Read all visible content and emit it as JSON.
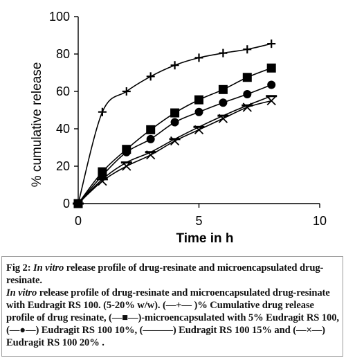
{
  "chart_data": {
    "type": "line",
    "xlabel": "Time in h",
    "ylabel": "% cumulative release",
    "xlim": [
      0,
      10
    ],
    "ylim": [
      0,
      100
    ],
    "x_ticks": [
      "0",
      "5",
      "10"
    ],
    "y_ticks": [
      "0",
      "20",
      "40",
      "60",
      "80",
      "100"
    ],
    "grid": false,
    "legend": "none (described in caption)",
    "series": [
      {
        "marker": "plus",
        "x": [
          0,
          1,
          2,
          3,
          4,
          5,
          6,
          7,
          8
        ],
        "values": [
          0,
          49,
          60,
          68,
          74,
          78,
          80.5,
          82.5,
          85.5
        ]
      },
      {
        "marker": "square",
        "x": [
          0,
          1,
          2,
          3,
          4,
          5,
          6,
          7,
          8
        ],
        "values": [
          0,
          17,
          29,
          39.5,
          48.5,
          55.5,
          61,
          67.5,
          72.5
        ]
      },
      {
        "marker": "circle",
        "x": [
          0,
          1,
          2,
          3,
          4,
          5,
          6,
          7,
          8
        ],
        "values": [
          0,
          15,
          27.5,
          34.5,
          43.5,
          49,
          54,
          58.5,
          63.5
        ]
      },
      {
        "marker": "dash",
        "x": [
          0,
          1,
          2,
          3,
          4,
          5,
          6,
          7,
          8
        ],
        "values": [
          0,
          13,
          22,
          27.5,
          34.5,
          41,
          47,
          52.5,
          57.5
        ]
      },
      {
        "marker": "cross",
        "x": [
          0,
          1,
          2,
          3,
          4,
          5,
          6,
          7,
          8
        ],
        "values": [
          0,
          12,
          20,
          26,
          33.5,
          39.5,
          45.5,
          51.5,
          55
        ]
      }
    ]
  },
  "caption": {
    "fig_prefix": "Fig 2: ",
    "line1_italic": "In vitro",
    "line1_rest": " release profile of drug-resinate and microencapsulated drug-resinate.",
    "para_italic": "In vitro",
    "para_rest": " release profile of drug-resinate and microencapsulated drug-resinate with Eudragit RS 100. (5-20% w/w).  (—+— )% Cumulative drug release profile of drug resinate, (—■—)-microencapsulated with 5% Eudragit RS 100, (—●—) Eudragit RS 100 10%,  (———) Eudragit RS 100 15% and (—×—) Eudragit RS 100 20% ."
  }
}
